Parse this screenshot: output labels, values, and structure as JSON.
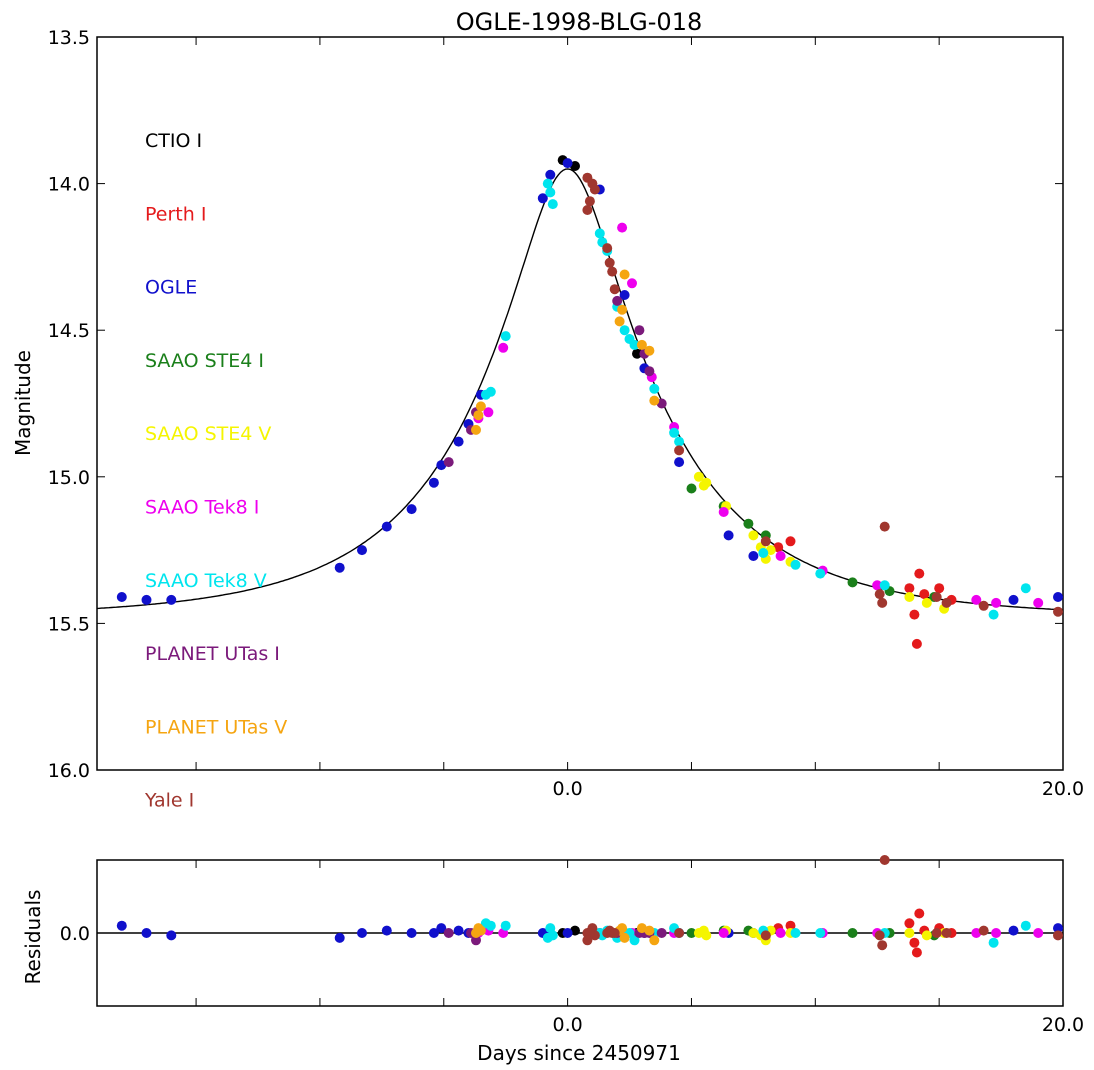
{
  "chart_data": {
    "type": "scatter",
    "title": "OGLE-1998-BLG-018",
    "xlabel": "Days since 2450971",
    "ylabel": "Magnitude",
    "residual_ylabel": "Residuals",
    "xlim": [
      -19,
      20
    ],
    "ylim": [
      16.0,
      13.5
    ],
    "residual_ylim": [
      -0.3,
      0.3
    ],
    "y_inverted": true,
    "grid": false,
    "legend_placement": "left-column",
    "x_tick_labels": [
      {
        "value": 0,
        "label": "0.0"
      },
      {
        "value": 20,
        "label": "20.0"
      }
    ],
    "x_minor_ticks": [
      -15,
      -10,
      -5,
      5,
      10,
      15
    ],
    "y_tick_labels": [
      {
        "value": 13.5,
        "label": "13.5"
      },
      {
        "value": 14.0,
        "label": "14.0"
      },
      {
        "value": 14.5,
        "label": "14.5"
      },
      {
        "value": 15.0,
        "label": "15.0"
      },
      {
        "value": 15.5,
        "label": "15.5"
      },
      {
        "value": 16.0,
        "label": "16.0"
      }
    ],
    "residual_y_tick_labels": [
      {
        "value": 0.0,
        "label": "0.0"
      }
    ],
    "model": {
      "t0": 0,
      "u0": 0.25,
      "tE": 7.5,
      "base": 15.48,
      "color": "#000000"
    },
    "series": [
      {
        "name": "CTIO I",
        "color": "#000000",
        "points": [
          [
            -0.2,
            13.92,
            0
          ],
          [
            0.3,
            13.94,
            0.01
          ],
          [
            2.8,
            14.58,
            0
          ]
        ]
      },
      {
        "name": "Perth I",
        "color": "#e41a1c",
        "points": [
          [
            8.5,
            15.24,
            0.02
          ],
          [
            9.0,
            15.22,
            0.03
          ],
          [
            13.8,
            15.38,
            0.04
          ],
          [
            14.0,
            15.47,
            -0.04
          ],
          [
            14.1,
            15.57,
            -0.08
          ],
          [
            14.2,
            15.33,
            0.08
          ],
          [
            14.4,
            15.4,
            0.01
          ],
          [
            15.5,
            15.42,
            0.0
          ],
          [
            15.0,
            15.38,
            0.02
          ]
        ]
      },
      {
        "name": "OGLE",
        "color": "#1010cc",
        "points": [
          [
            -18.0,
            15.41,
            0.03
          ],
          [
            -17.0,
            15.42,
            0.0
          ],
          [
            -16.0,
            15.42,
            -0.01
          ],
          [
            -9.2,
            15.31,
            -0.02
          ],
          [
            -8.3,
            15.25,
            0.0
          ],
          [
            -7.3,
            15.17,
            0.01
          ],
          [
            -6.3,
            15.11,
            0.0
          ],
          [
            -5.4,
            15.02,
            0.0
          ],
          [
            -5.1,
            14.96,
            0.02
          ],
          [
            -4.4,
            14.88,
            0.01
          ],
          [
            -4.0,
            14.82,
            0.0
          ],
          [
            -3.5,
            14.72,
            0.01
          ],
          [
            -1.0,
            14.05,
            0.0
          ],
          [
            -0.7,
            13.97,
            0.0
          ],
          [
            0.0,
            13.93,
            0.0
          ],
          [
            1.3,
            14.02,
            0.0
          ],
          [
            2.3,
            14.38,
            0.0
          ],
          [
            3.1,
            14.63,
            0.0
          ],
          [
            4.5,
            14.95,
            0.0
          ],
          [
            6.5,
            15.2,
            0.0
          ],
          [
            7.5,
            15.27,
            0.0
          ],
          [
            18.0,
            15.42,
            0.01
          ],
          [
            19.8,
            15.41,
            0.02
          ]
        ]
      },
      {
        "name": "SAAO STE4 I",
        "color": "#1a7f1a",
        "points": [
          [
            5.0,
            15.04,
            0.0
          ],
          [
            6.3,
            15.1,
            0.01
          ],
          [
            7.3,
            15.16,
            0.01
          ],
          [
            8.0,
            15.2,
            -0.01
          ],
          [
            11.5,
            15.36,
            0.0
          ],
          [
            13.0,
            15.39,
            0.0
          ],
          [
            14.8,
            15.41,
            -0.01
          ]
        ]
      },
      {
        "name": "SAAO STE4 V",
        "color": "#f5f500",
        "points": [
          [
            5.3,
            15.0,
            0.0
          ],
          [
            5.5,
            15.03,
            0.01
          ],
          [
            5.6,
            15.02,
            -0.01
          ],
          [
            6.4,
            15.1,
            0.01
          ],
          [
            7.5,
            15.2,
            0.0
          ],
          [
            7.8,
            15.24,
            -0.01
          ],
          [
            8.0,
            15.28,
            -0.03
          ],
          [
            8.2,
            15.25,
            0.01
          ],
          [
            9.0,
            15.29,
            0.0
          ],
          [
            13.8,
            15.41,
            0.0
          ],
          [
            14.5,
            15.43,
            -0.01
          ],
          [
            15.2,
            15.45,
            0.0
          ]
        ]
      },
      {
        "name": "SAAO Tek8 I",
        "color": "#ee00ee",
        "points": [
          [
            -3.2,
            14.78,
            0.01
          ],
          [
            -3.6,
            14.8,
            0.0
          ],
          [
            -2.6,
            14.56,
            0.0
          ],
          [
            2.2,
            14.15,
            0.0
          ],
          [
            2.6,
            14.34,
            0.0
          ],
          [
            3.4,
            14.66,
            0.0
          ],
          [
            4.3,
            14.83,
            0.0
          ],
          [
            6.3,
            15.12,
            0.0
          ],
          [
            8.6,
            15.27,
            0.0
          ],
          [
            10.3,
            15.32,
            0.0
          ],
          [
            12.5,
            15.37,
            0.0
          ],
          [
            16.5,
            15.42,
            0.0
          ],
          [
            17.3,
            15.43,
            0.0
          ],
          [
            19.0,
            15.43,
            0.0
          ]
        ]
      },
      {
        "name": "SAAO Tek8 V",
        "color": "#00e5ee",
        "points": [
          [
            -2.5,
            14.52,
            0.03
          ],
          [
            -3.3,
            14.72,
            0.04
          ],
          [
            -3.1,
            14.71,
            0.03
          ],
          [
            -0.8,
            14.0,
            -0.02
          ],
          [
            -0.7,
            14.03,
            0.02
          ],
          [
            -0.6,
            14.07,
            -0.01
          ],
          [
            1.3,
            14.17,
            0.0
          ],
          [
            1.4,
            14.2,
            -0.01
          ],
          [
            1.6,
            14.23,
            0.01
          ],
          [
            2.0,
            14.42,
            -0.02
          ],
          [
            2.3,
            14.5,
            -0.01
          ],
          [
            2.5,
            14.53,
            0.0
          ],
          [
            2.7,
            14.55,
            -0.03
          ],
          [
            3.5,
            14.7,
            0.0
          ],
          [
            4.3,
            14.85,
            0.02
          ],
          [
            4.5,
            14.88,
            0.0
          ],
          [
            7.9,
            15.26,
            0.01
          ],
          [
            9.2,
            15.3,
            0.0
          ],
          [
            10.2,
            15.33,
            0.0
          ],
          [
            12.8,
            15.37,
            0.0
          ],
          [
            17.2,
            15.47,
            -0.04
          ],
          [
            18.5,
            15.38,
            0.03
          ]
        ]
      },
      {
        "name": "PLANET UTas I",
        "color": "#7b1a7b",
        "points": [
          [
            -4.8,
            14.95,
            0.0
          ],
          [
            -3.9,
            14.84,
            0.0
          ],
          [
            -3.7,
            14.78,
            -0.03
          ],
          [
            2.0,
            14.4,
            0.0
          ],
          [
            2.9,
            14.5,
            0.0
          ],
          [
            3.1,
            14.58,
            0.0
          ],
          [
            3.3,
            14.64,
            0.0
          ],
          [
            3.8,
            14.75,
            0.0
          ]
        ]
      },
      {
        "name": "PLANET UTas V",
        "color": "#f5a511",
        "points": [
          [
            -3.6,
            14.79,
            0.02
          ],
          [
            -3.7,
            14.84,
            0.0
          ],
          [
            -3.5,
            14.76,
            0.01
          ],
          [
            2.1,
            14.47,
            0.01
          ],
          [
            2.2,
            14.43,
            0.02
          ],
          [
            2.3,
            14.31,
            -0.02
          ],
          [
            3.0,
            14.55,
            0.02
          ],
          [
            3.3,
            14.57,
            0.01
          ],
          [
            3.5,
            14.74,
            -0.03
          ]
        ]
      },
      {
        "name": "Yale I",
        "color": "#a0372f",
        "points": [
          [
            0.8,
            13.98,
            0.0
          ],
          [
            1.0,
            14.0,
            0.02
          ],
          [
            1.1,
            14.02,
            -0.01
          ],
          [
            0.9,
            14.06,
            0.0
          ],
          [
            0.8,
            14.09,
            -0.03
          ],
          [
            1.6,
            14.22,
            0.0
          ],
          [
            1.7,
            14.27,
            0.01
          ],
          [
            1.8,
            14.3,
            0.0
          ],
          [
            1.9,
            14.36,
            0.0
          ],
          [
            4.5,
            14.91,
            0.0
          ],
          [
            8.0,
            15.22,
            -0.01
          ],
          [
            12.8,
            15.17,
            0.3
          ],
          [
            12.6,
            15.4,
            -0.01
          ],
          [
            12.7,
            15.43,
            -0.05
          ],
          [
            14.9,
            15.41,
            0.0
          ],
          [
            15.3,
            15.43,
            0.0
          ],
          [
            16.8,
            15.44,
            0.01
          ],
          [
            19.8,
            15.46,
            -0.01
          ]
        ]
      }
    ]
  }
}
